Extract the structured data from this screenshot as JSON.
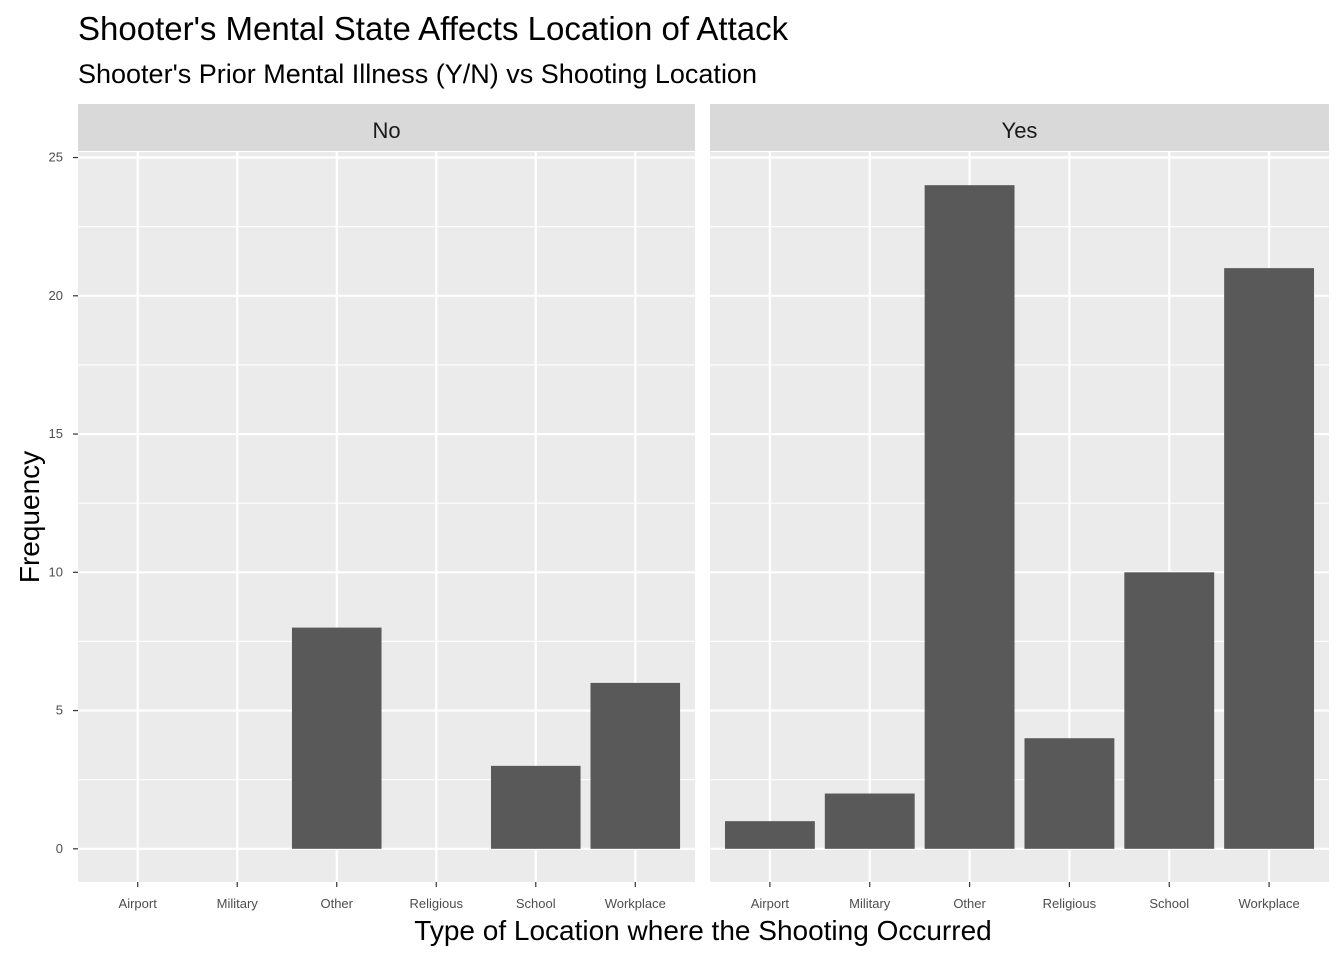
{
  "chart_data": {
    "type": "bar",
    "title": "Shooter's Mental State Affects Location of Attack",
    "subtitle": "Shooter's Prior Mental Illness (Y/N) vs Shooting Location",
    "xlabel": "Type of Location where the Shooting Occurred",
    "ylabel": "Frequency",
    "categories": [
      "Airport",
      "Military",
      "Other",
      "Religious",
      "School",
      "Workplace"
    ],
    "y_ticks": [
      "0",
      "5",
      "10",
      "15",
      "20",
      "25"
    ],
    "ylim": [
      -1.2,
      25.2
    ],
    "grid": true,
    "facets": [
      {
        "label": "No",
        "values": [
          0,
          0,
          8,
          0,
          3,
          6
        ]
      },
      {
        "label": "Yes",
        "values": [
          1,
          2,
          24,
          4,
          10,
          21
        ]
      }
    ],
    "colors": {
      "bar": "#595959",
      "panel": "#ebebeb",
      "grid": "#ffffff",
      "strip": "#d9d9d9"
    }
  }
}
